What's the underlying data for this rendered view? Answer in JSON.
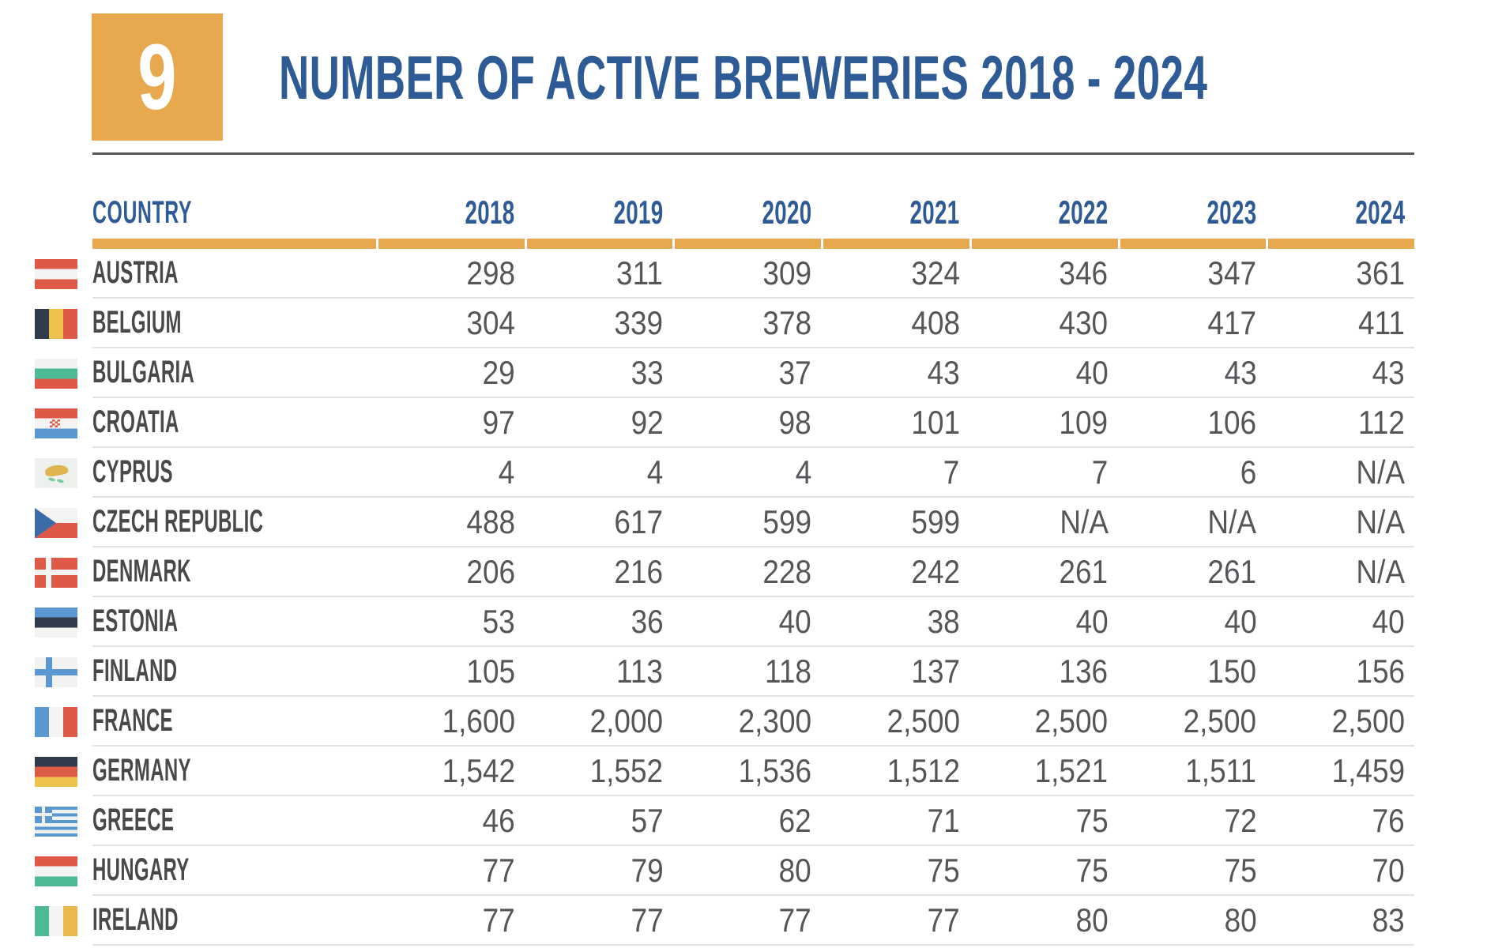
{
  "badge": {
    "number": "9"
  },
  "title": "NUMBER OF ACTIVE BREWERIES 2018 - 2024",
  "colors": {
    "accent_gold": "#e8a84e",
    "heading_blue": "#2e5b96",
    "text_dark": "#48494b",
    "number_gray": "#555659",
    "rule_gray": "#55565a",
    "separator_gray": "#e2e2e2"
  },
  "table": {
    "country_header": "COUNTRY",
    "year_headers": [
      "2018",
      "2019",
      "2020",
      "2021",
      "2022",
      "2023",
      "2024"
    ],
    "rows": [
      {
        "country": "AUSTRIA",
        "flag": "austria",
        "values": [
          "298",
          "311",
          "309",
          "324",
          "346",
          "347",
          "361"
        ]
      },
      {
        "country": "BELGIUM",
        "flag": "belgium",
        "values": [
          "304",
          "339",
          "378",
          "408",
          "430",
          "417",
          "411"
        ]
      },
      {
        "country": "BULGARIA",
        "flag": "bulgaria",
        "values": [
          "29",
          "33",
          "37",
          "43",
          "40",
          "43",
          "43"
        ]
      },
      {
        "country": "CROATIA",
        "flag": "croatia",
        "values": [
          "97",
          "92",
          "98",
          "101",
          "109",
          "106",
          "112"
        ]
      },
      {
        "country": "CYPRUS",
        "flag": "cyprus",
        "values": [
          "4",
          "4",
          "4",
          "7",
          "7",
          "6",
          "N/A"
        ]
      },
      {
        "country": "CZECH REPUBLIC",
        "flag": "czech-republic",
        "values": [
          "488",
          "617",
          "599",
          "599",
          "N/A",
          "N/A",
          "N/A"
        ]
      },
      {
        "country": "DENMARK",
        "flag": "denmark",
        "values": [
          "206",
          "216",
          "228",
          "242",
          "261",
          "261",
          "N/A"
        ]
      },
      {
        "country": "ESTONIA",
        "flag": "estonia",
        "values": [
          "53",
          "36",
          "40",
          "38",
          "40",
          "40",
          "40"
        ]
      },
      {
        "country": "FINLAND",
        "flag": "finland",
        "values": [
          "105",
          "113",
          "118",
          "137",
          "136",
          "150",
          "156"
        ]
      },
      {
        "country": "FRANCE",
        "flag": "france",
        "values": [
          "1,600",
          "2,000",
          "2,300",
          "2,500",
          "2,500",
          "2,500",
          "2,500"
        ]
      },
      {
        "country": "GERMANY",
        "flag": "germany",
        "values": [
          "1,542",
          "1,552",
          "1,536",
          "1,512",
          "1,521",
          "1,511",
          "1,459"
        ]
      },
      {
        "country": "GREECE",
        "flag": "greece",
        "values": [
          "46",
          "57",
          "62",
          "71",
          "75",
          "72",
          "76"
        ]
      },
      {
        "country": "HUNGARY",
        "flag": "hungary",
        "values": [
          "77",
          "79",
          "80",
          "75",
          "75",
          "75",
          "70"
        ]
      },
      {
        "country": "IRELAND",
        "flag": "ireland",
        "values": [
          "77",
          "77",
          "77",
          "77",
          "80",
          "80",
          "83"
        ]
      }
    ]
  }
}
